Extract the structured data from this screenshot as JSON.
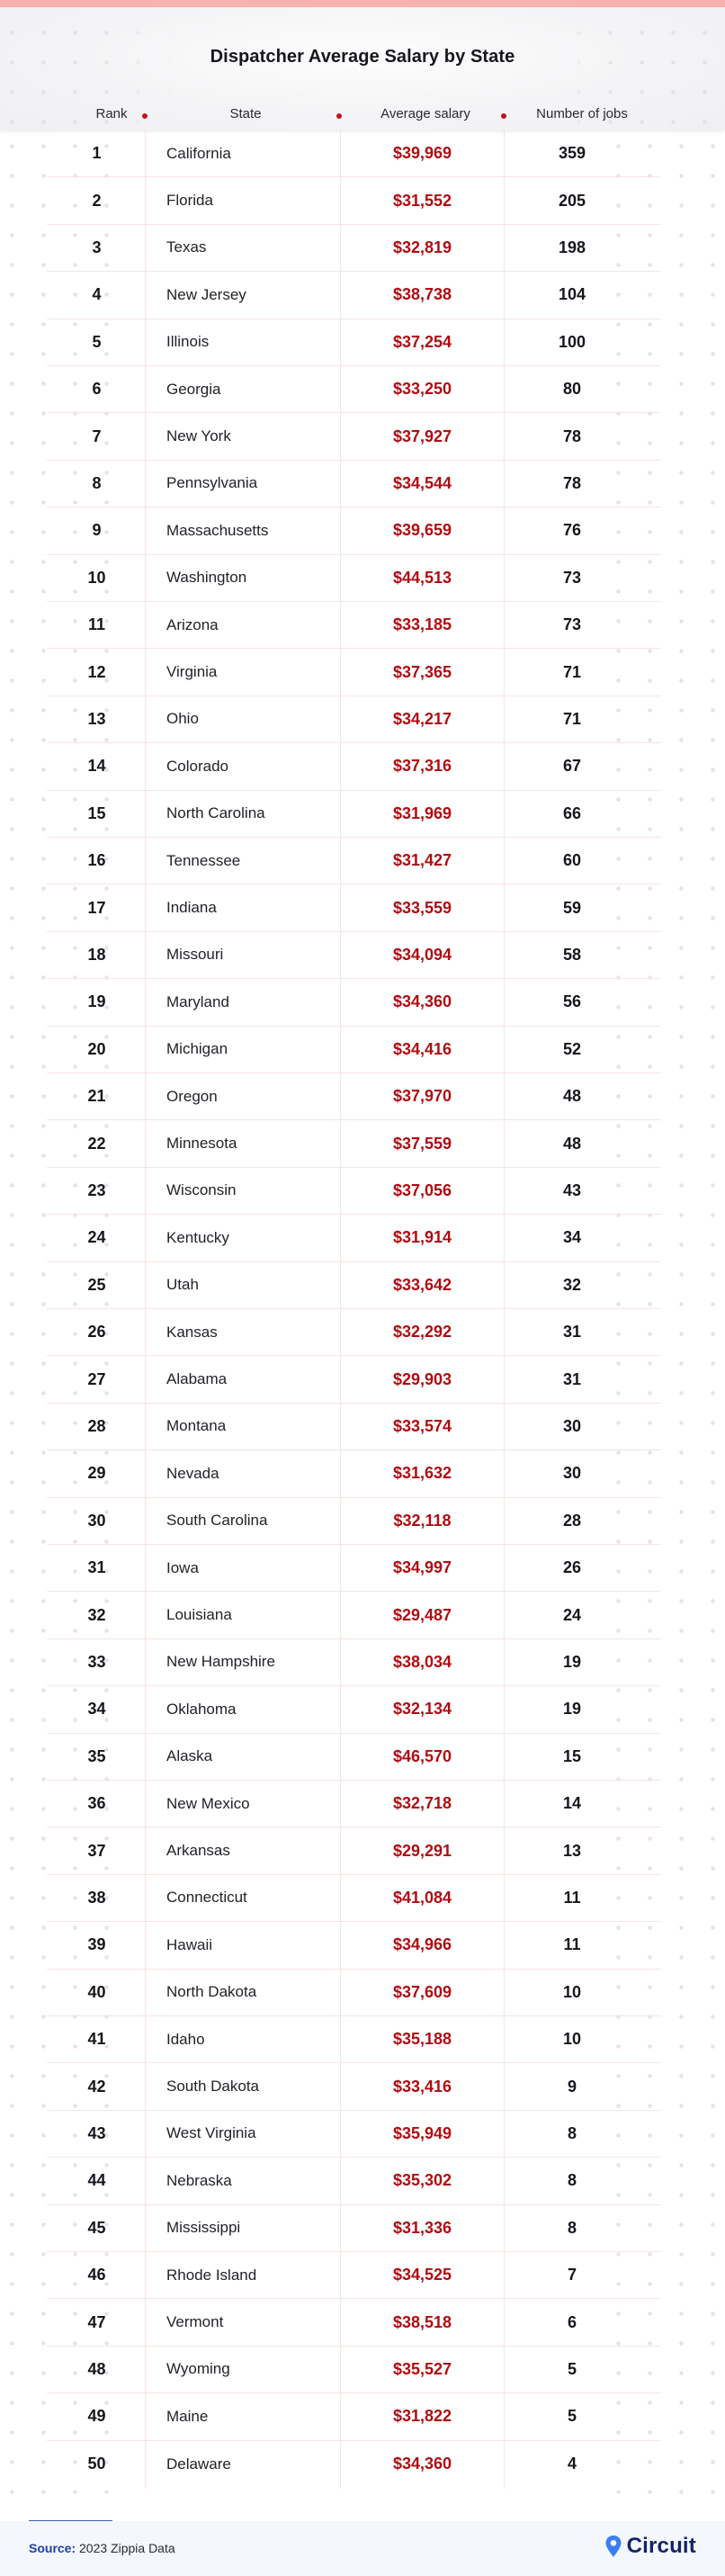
{
  "title": "Dispatcher Average Salary by State",
  "columns": {
    "rank": "Rank",
    "state": "State",
    "salary": "Average salary",
    "jobs": "Number of jobs"
  },
  "footer": {
    "source_label": "Source:",
    "source_text": " 2023 Zippia Data",
    "brand": "Circuit"
  },
  "colors": {
    "accent_red": "#b00d12",
    "top_bar": "#f7b1b1",
    "brand_blue": "#142466",
    "pin_blue": "#3d7ef5"
  },
  "rows": [
    {
      "rank": "1",
      "state": "California",
      "salary": "$39,969",
      "jobs": "359"
    },
    {
      "rank": "2",
      "state": "Florida",
      "salary": "$31,552",
      "jobs": "205"
    },
    {
      "rank": "3",
      "state": "Texas",
      "salary": "$32,819",
      "jobs": "198"
    },
    {
      "rank": "4",
      "state": "New Jersey",
      "salary": "$38,738",
      "jobs": "104"
    },
    {
      "rank": "5",
      "state": "Illinois",
      "salary": "$37,254",
      "jobs": "100"
    },
    {
      "rank": "6",
      "state": "Georgia",
      "salary": "$33,250",
      "jobs": "80"
    },
    {
      "rank": "7",
      "state": "New York",
      "salary": "$37,927",
      "jobs": "78"
    },
    {
      "rank": "8",
      "state": "Pennsylvania",
      "salary": "$34,544",
      "jobs": "78"
    },
    {
      "rank": "9",
      "state": "Massachusetts",
      "salary": "$39,659",
      "jobs": "76"
    },
    {
      "rank": "10",
      "state": "Washington",
      "salary": "$44,513",
      "jobs": "73"
    },
    {
      "rank": "11",
      "state": "Arizona",
      "salary": "$33,185",
      "jobs": "73"
    },
    {
      "rank": "12",
      "state": "Virginia",
      "salary": "$37,365",
      "jobs": "71"
    },
    {
      "rank": "13",
      "state": "Ohio",
      "salary": "$34,217",
      "jobs": "71"
    },
    {
      "rank": "14",
      "state": "Colorado",
      "salary": "$37,316",
      "jobs": "67"
    },
    {
      "rank": "15",
      "state": "North Carolina",
      "salary": "$31,969",
      "jobs": "66"
    },
    {
      "rank": "16",
      "state": "Tennessee",
      "salary": "$31,427",
      "jobs": "60"
    },
    {
      "rank": "17",
      "state": "Indiana",
      "salary": "$33,559",
      "jobs": "59"
    },
    {
      "rank": "18",
      "state": "Missouri",
      "salary": "$34,094",
      "jobs": "58"
    },
    {
      "rank": "19",
      "state": "Maryland",
      "salary": "$34,360",
      "jobs": "56"
    },
    {
      "rank": "20",
      "state": "Michigan",
      "salary": "$34,416",
      "jobs": "52"
    },
    {
      "rank": "21",
      "state": "Oregon",
      "salary": "$37,970",
      "jobs": "48"
    },
    {
      "rank": "22",
      "state": "Minnesota",
      "salary": "$37,559",
      "jobs": "48"
    },
    {
      "rank": "23",
      "state": "Wisconsin",
      "salary": "$37,056",
      "jobs": "43"
    },
    {
      "rank": "24",
      "state": "Kentucky",
      "salary": "$31,914",
      "jobs": "34"
    },
    {
      "rank": "25",
      "state": "Utah",
      "salary": "$33,642",
      "jobs": "32"
    },
    {
      "rank": "26",
      "state": "Kansas",
      "salary": "$32,292",
      "jobs": "31"
    },
    {
      "rank": "27",
      "state": "Alabama",
      "salary": "$29,903",
      "jobs": "31"
    },
    {
      "rank": "28",
      "state": "Montana",
      "salary": "$33,574",
      "jobs": "30"
    },
    {
      "rank": "29",
      "state": "Nevada",
      "salary": "$31,632",
      "jobs": "30"
    },
    {
      "rank": "30",
      "state": "South Carolina",
      "salary": "$32,118",
      "jobs": "28"
    },
    {
      "rank": "31",
      "state": "Iowa",
      "salary": "$34,997",
      "jobs": "26"
    },
    {
      "rank": "32",
      "state": "Louisiana",
      "salary": "$29,487",
      "jobs": "24"
    },
    {
      "rank": "33",
      "state": "New Hampshire",
      "salary": "$38,034",
      "jobs": "19"
    },
    {
      "rank": "34",
      "state": "Oklahoma",
      "salary": "$32,134",
      "jobs": "19"
    },
    {
      "rank": "35",
      "state": "Alaska",
      "salary": "$46,570",
      "jobs": "15"
    },
    {
      "rank": "36",
      "state": "New Mexico",
      "salary": "$32,718",
      "jobs": "14"
    },
    {
      "rank": "37",
      "state": "Arkansas",
      "salary": "$29,291",
      "jobs": "13"
    },
    {
      "rank": "38",
      "state": "Connecticut",
      "salary": "$41,084",
      "jobs": "11"
    },
    {
      "rank": "39",
      "state": "Hawaii",
      "salary": "$34,966",
      "jobs": "11"
    },
    {
      "rank": "40",
      "state": "North Dakota",
      "salary": "$37,609",
      "jobs": "10"
    },
    {
      "rank": "41",
      "state": "Idaho",
      "salary": "$35,188",
      "jobs": "10"
    },
    {
      "rank": "42",
      "state": "South Dakota",
      "salary": "$33,416",
      "jobs": "9"
    },
    {
      "rank": "43",
      "state": "West Virginia",
      "salary": "$35,949",
      "jobs": "8"
    },
    {
      "rank": "44",
      "state": "Nebraska",
      "salary": "$35,302",
      "jobs": "8"
    },
    {
      "rank": "45",
      "state": "Mississippi",
      "salary": "$31,336",
      "jobs": "8"
    },
    {
      "rank": "46",
      "state": "Rhode Island",
      "salary": "$34,525",
      "jobs": "7"
    },
    {
      "rank": "47",
      "state": "Vermont",
      "salary": "$38,518",
      "jobs": "6"
    },
    {
      "rank": "48",
      "state": "Wyoming",
      "salary": "$35,527",
      "jobs": "5"
    },
    {
      "rank": "49",
      "state": "Maine",
      "salary": "$31,822",
      "jobs": "5"
    },
    {
      "rank": "50",
      "state": "Delaware",
      "salary": "$34,360",
      "jobs": "4"
    }
  ],
  "chart_data": {
    "type": "table",
    "title": "Dispatcher Average Salary by State",
    "columns": [
      "Rank",
      "State",
      "Average salary",
      "Number of jobs"
    ],
    "rows": [
      [
        1,
        "California",
        39969,
        359
      ],
      [
        2,
        "Florida",
        31552,
        205
      ],
      [
        3,
        "Texas",
        32819,
        198
      ],
      [
        4,
        "New Jersey",
        38738,
        104
      ],
      [
        5,
        "Illinois",
        37254,
        100
      ],
      [
        6,
        "Georgia",
        33250,
        80
      ],
      [
        7,
        "New York",
        37927,
        78
      ],
      [
        8,
        "Pennsylvania",
        34544,
        78
      ],
      [
        9,
        "Massachusetts",
        39659,
        76
      ],
      [
        10,
        "Washington",
        44513,
        73
      ],
      [
        11,
        "Arizona",
        33185,
        73
      ],
      [
        12,
        "Virginia",
        37365,
        71
      ],
      [
        13,
        "Ohio",
        34217,
        71
      ],
      [
        14,
        "Colorado",
        37316,
        67
      ],
      [
        15,
        "North Carolina",
        31969,
        66
      ],
      [
        16,
        "Tennessee",
        31427,
        60
      ],
      [
        17,
        "Indiana",
        33559,
        59
      ],
      [
        18,
        "Missouri",
        34094,
        58
      ],
      [
        19,
        "Maryland",
        34360,
        56
      ],
      [
        20,
        "Michigan",
        34416,
        52
      ],
      [
        21,
        "Oregon",
        37970,
        48
      ],
      [
        22,
        "Minnesota",
        37559,
        48
      ],
      [
        23,
        "Wisconsin",
        37056,
        43
      ],
      [
        24,
        "Kentucky",
        31914,
        34
      ],
      [
        25,
        "Utah",
        33642,
        32
      ],
      [
        26,
        "Kansas",
        32292,
        31
      ],
      [
        27,
        "Alabama",
        29903,
        31
      ],
      [
        28,
        "Montana",
        33574,
        30
      ],
      [
        29,
        "Nevada",
        31632,
        30
      ],
      [
        30,
        "South Carolina",
        32118,
        28
      ],
      [
        31,
        "Iowa",
        34997,
        26
      ],
      [
        32,
        "Louisiana",
        29487,
        24
      ],
      [
        33,
        "New Hampshire",
        38034,
        19
      ],
      [
        34,
        "Oklahoma",
        32134,
        19
      ],
      [
        35,
        "Alaska",
        46570,
        15
      ],
      [
        36,
        "New Mexico",
        32718,
        14
      ],
      [
        37,
        "Arkansas",
        29291,
        13
      ],
      [
        38,
        "Connecticut",
        41084,
        11
      ],
      [
        39,
        "Hawaii",
        34966,
        11
      ],
      [
        40,
        "North Dakota",
        37609,
        10
      ],
      [
        41,
        "Idaho",
        35188,
        10
      ],
      [
        42,
        "South Dakota",
        33416,
        9
      ],
      [
        43,
        "West Virginia",
        35949,
        8
      ],
      [
        44,
        "Nebraska",
        35302,
        8
      ],
      [
        45,
        "Mississippi",
        31336,
        8
      ],
      [
        46,
        "Rhode Island",
        34525,
        7
      ],
      [
        47,
        "Vermont",
        38518,
        6
      ],
      [
        48,
        "Wyoming",
        35527,
        5
      ],
      [
        49,
        "Maine",
        31822,
        5
      ],
      [
        50,
        "Delaware",
        34360,
        4
      ]
    ],
    "source": "2023 Zippia Data"
  }
}
